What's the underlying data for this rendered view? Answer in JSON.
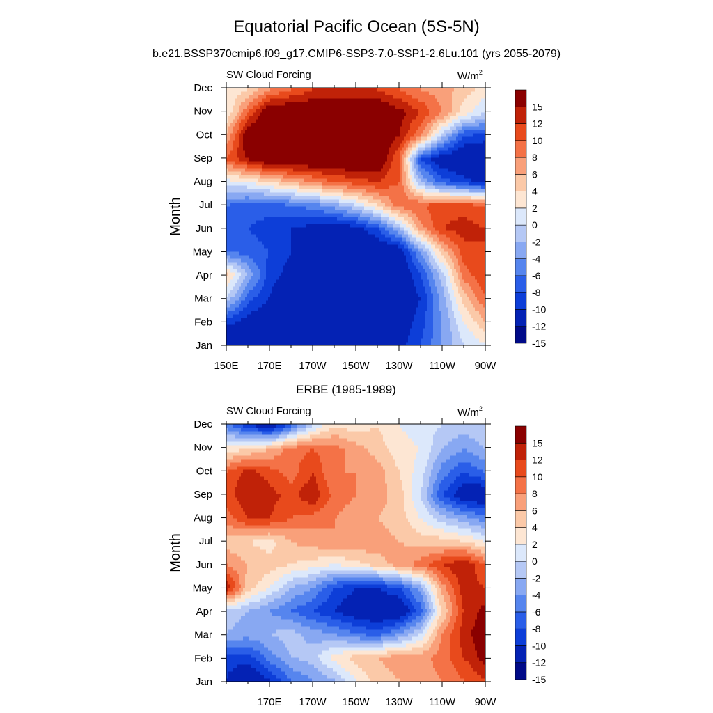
{
  "figure": {
    "title": "Equatorial Pacific Ocean (5S-5N)",
    "subtitle": "b.e21.BSSP370cmip6.f09_g17.CMIP6-SSP3-7.0-SSP1-2.6Lu.101 (yrs 2055-2079)"
  },
  "chart_data": [
    {
      "type": "heatmap",
      "panel_title": "",
      "left_string": "SW Cloud Forcing",
      "units_main": "W/m",
      "units_sup": "2",
      "ylabel": "Month",
      "x_tick_labels": [
        "150E",
        "170E",
        "170W",
        "150W",
        "130W",
        "110W",
        "90W"
      ],
      "x_ticks_deg_east": [
        150,
        170,
        190,
        210,
        230,
        250,
        270
      ],
      "xlim_deg_east": [
        150,
        270
      ],
      "y_tick_labels": [
        "Jan",
        "Feb",
        "Mar",
        "Apr",
        "May",
        "Jun",
        "Jul",
        "Aug",
        "Sep",
        "Oct",
        "Nov",
        "Dec"
      ],
      "colorbar_levels": [
        -15,
        -12,
        -10,
        -8,
        -6,
        -4,
        -2,
        0,
        2,
        4,
        6,
        8,
        10,
        12,
        15
      ],
      "colorbar_labels": [
        "15",
        "12",
        "10",
        "8",
        "6",
        "4",
        "2",
        "0",
        "-2",
        "-4",
        "-6",
        "-8",
        "-10",
        "-12",
        "-15"
      ],
      "colorbar_colors": [
        "#000a88",
        "#0422b4",
        "#0d3ed8",
        "#2a5ee8",
        "#5685ee",
        "#88a8f2",
        "#b5c8f5",
        "#dce8fb",
        "#fde6d3",
        "#fbc9a8",
        "#f9a07a",
        "#f47247",
        "#e84a1c",
        "#c02208",
        "#8a0000"
      ],
      "x_grid_deg_east": [
        150,
        160,
        170,
        180,
        190,
        200,
        210,
        220,
        230,
        240,
        250,
        260,
        270
      ],
      "values_by_month": [
        [
          -15,
          -15,
          -15,
          -15,
          -15,
          -15,
          -15,
          -15,
          -13,
          -10,
          -6,
          -2,
          0
        ],
        [
          -11,
          -13,
          -15,
          -15,
          -15,
          -15,
          -15,
          -15,
          -14,
          -11,
          -6,
          0,
          4
        ],
        [
          -2,
          -9,
          -12,
          -15,
          -15,
          -15,
          -15,
          -15,
          -15,
          -12,
          -5,
          3,
          8
        ],
        [
          3,
          -4,
          -11,
          -13,
          -15,
          -15,
          -15,
          -15,
          -15,
          -10,
          -3,
          7,
          10
        ],
        [
          -8,
          -9,
          -10,
          -12,
          -15,
          -15,
          -15,
          -15,
          -14,
          -6,
          3,
          9,
          10
        ],
        [
          -9,
          -10,
          -11,
          -12,
          -13,
          -14,
          -13,
          -10,
          -4,
          5,
          10,
          11,
          10
        ],
        [
          -8,
          -9,
          -9,
          -8,
          -7,
          -5,
          -2,
          2,
          7,
          8,
          9,
          9,
          8
        ],
        [
          -1,
          0,
          2,
          4,
          6,
          8,
          9,
          10,
          8,
          -4,
          -9,
          -11,
          -13
        ],
        [
          8,
          12,
          15,
          15,
          15,
          15,
          15,
          15,
          8,
          -10,
          -14,
          -15,
          -15
        ],
        [
          4,
          15,
          15,
          15,
          15,
          15,
          15,
          15,
          12,
          6,
          -3,
          -10,
          -11
        ],
        [
          0,
          8,
          15,
          15,
          15,
          15,
          15,
          15,
          13,
          10,
          6,
          1,
          -2
        ],
        [
          0,
          2,
          6,
          8,
          10,
          10,
          10,
          10,
          8,
          6,
          5,
          3,
          1
        ]
      ]
    },
    {
      "type": "heatmap",
      "panel_title": "ERBE (1985-1989)",
      "left_string": "SW Cloud Forcing",
      "units_main": "W/m",
      "units_sup": "2",
      "ylabel": "Month",
      "x_tick_labels": [
        "170E",
        "170W",
        "150W",
        "130W",
        "110W",
        "90W"
      ],
      "x_ticks_deg_east": [
        170,
        190,
        210,
        230,
        250,
        270
      ],
      "xlim_deg_east": [
        150,
        270
      ],
      "y_tick_labels": [
        "Jan",
        "Feb",
        "Mar",
        "Apr",
        "May",
        "Jun",
        "Jul",
        "Aug",
        "Sep",
        "Oct",
        "Nov",
        "Dec"
      ],
      "colorbar_levels": [
        -15,
        -12,
        -10,
        -8,
        -6,
        -4,
        -2,
        0,
        2,
        4,
        6,
        8,
        10,
        12,
        15
      ],
      "colorbar_labels": [
        "15",
        "12",
        "10",
        "8",
        "6",
        "4",
        "2",
        "0",
        "-2",
        "-4",
        "-6",
        "-8",
        "-10",
        "-12",
        "-15"
      ],
      "colorbar_colors": [
        "#000a88",
        "#0422b4",
        "#0d3ed8",
        "#2a5ee8",
        "#5685ee",
        "#88a8f2",
        "#b5c8f5",
        "#dce8fb",
        "#fde6d3",
        "#fbc9a8",
        "#f9a07a",
        "#f47247",
        "#e84a1c",
        "#c02208",
        "#8a0000"
      ],
      "x_grid_deg_east": [
        150,
        160,
        170,
        180,
        190,
        200,
        210,
        220,
        230,
        240,
        250,
        260,
        270
      ],
      "values_by_month": [
        [
          -12,
          -15,
          -12,
          -8,
          -6,
          -4,
          0,
          3,
          4,
          5,
          6,
          8,
          10
        ],
        [
          -11,
          -11,
          -7,
          -4,
          -3,
          1,
          3,
          4,
          5,
          5,
          7,
          10,
          13
        ],
        [
          -4,
          -5,
          -4,
          -3,
          -5,
          -6,
          -8,
          -9,
          -6,
          -2,
          6,
          11,
          14
        ],
        [
          -3,
          -4,
          -6,
          -8,
          -10,
          -12,
          -14,
          -15,
          -15,
          -9,
          2,
          10,
          13
        ],
        [
          12,
          3,
          0,
          -4,
          -6,
          -10,
          -12,
          -12,
          -10,
          -5,
          5,
          11,
          10
        ],
        [
          6,
          4,
          3,
          2,
          1,
          0,
          1,
          3,
          5,
          7,
          10,
          12,
          8
        ],
        [
          3,
          2,
          1,
          4,
          5,
          6,
          6,
          5,
          4,
          3,
          3,
          2,
          0
        ],
        [
          7,
          10,
          10,
          8,
          7,
          6,
          5,
          4,
          3,
          0,
          -3,
          -5,
          -7
        ],
        [
          9,
          12,
          11,
          9,
          12,
          7,
          6,
          5,
          3,
          -2,
          -10,
          -14,
          -15
        ],
        [
          8,
          11,
          9,
          7,
          10,
          6,
          6,
          5,
          2,
          -1,
          -7,
          -10,
          -8
        ],
        [
          1,
          2,
          4,
          7,
          8,
          7,
          5,
          3,
          1,
          0,
          -4,
          -6,
          -4
        ],
        [
          -7,
          -11,
          -14,
          -8,
          -2,
          2,
          1,
          2,
          0,
          -1,
          -2,
          -3,
          -2
        ]
      ]
    }
  ]
}
